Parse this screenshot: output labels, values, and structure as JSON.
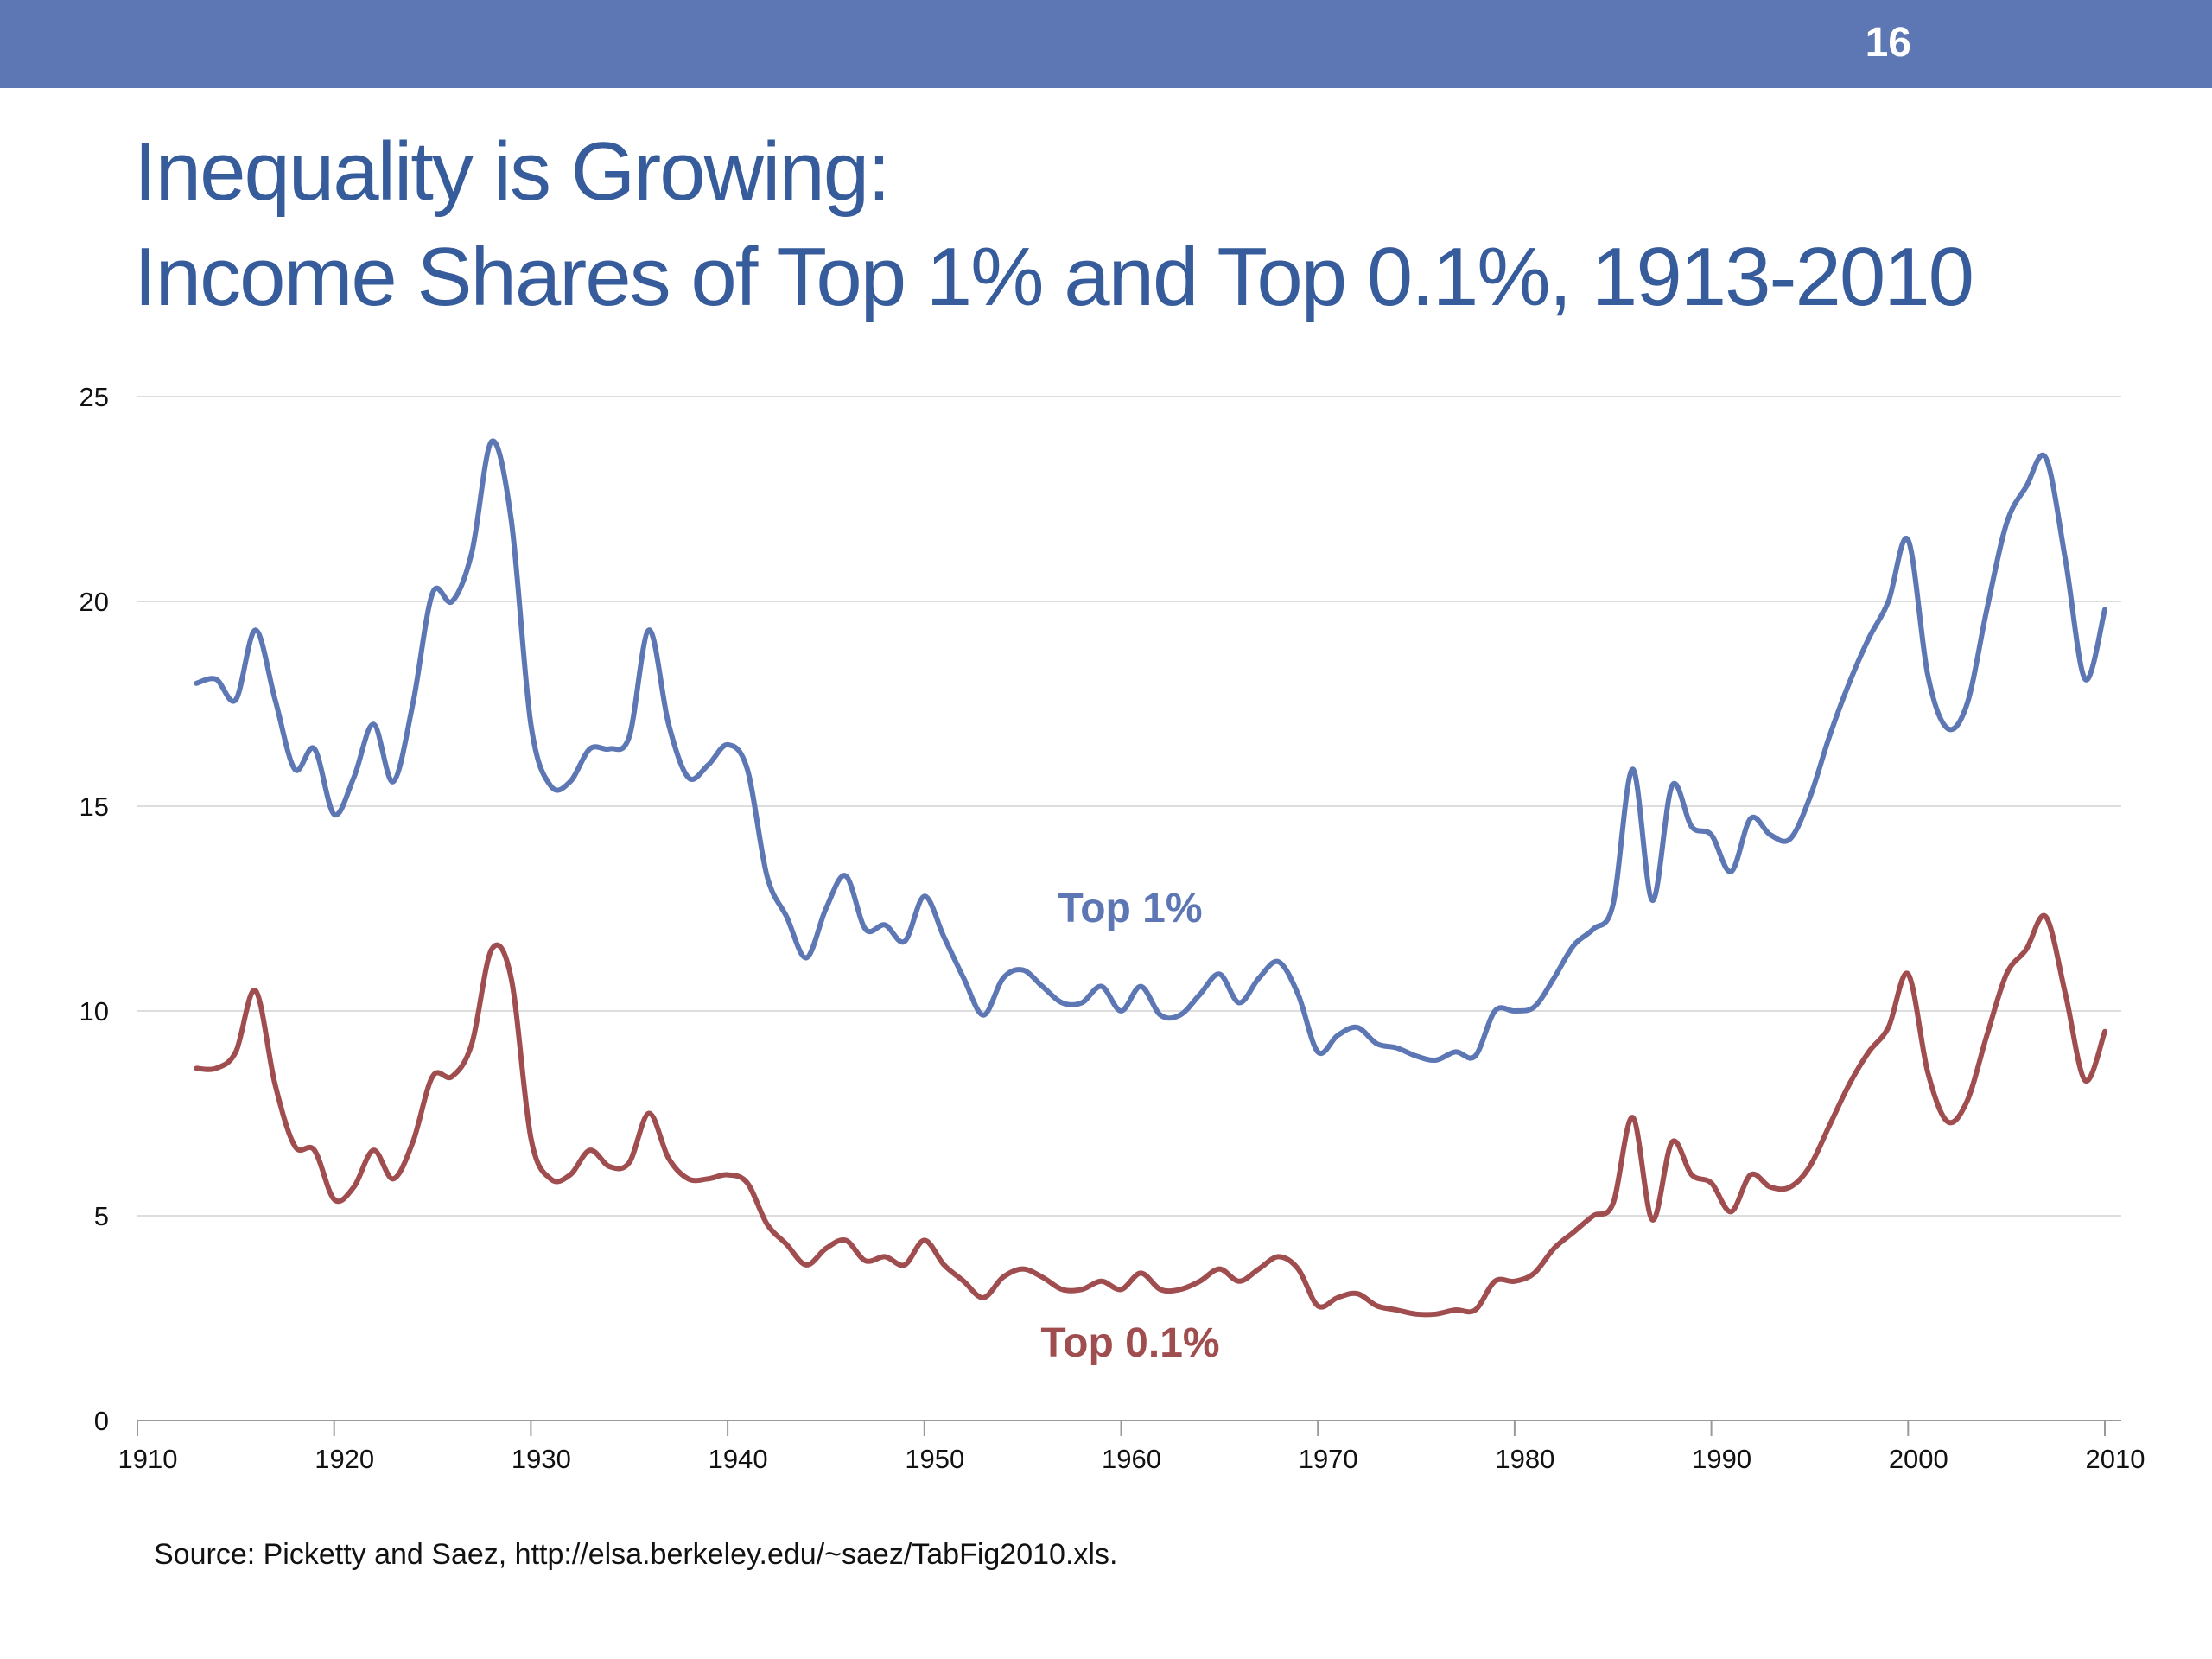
{
  "slide": {
    "number": "16",
    "title_line1": "Inequality is Growing:",
    "title_line2": "Income Shares of Top 1% and Top 0.1%, 1913-2010",
    "source": "Source: Picketty and Saez, http://elsa.berkeley.edu/~saez/TabFig2010.xls."
  },
  "colors": {
    "header_bar": "#5d77b5",
    "title": "#365c9b",
    "top1": "#5d77b5",
    "top01": "#a04d4f",
    "grid": "#dddddd",
    "axis": "#999999"
  },
  "chart_data": {
    "type": "line",
    "title": "",
    "xlabel": "",
    "ylabel": "",
    "xlim": [
      1910,
      2010
    ],
    "ylim": [
      0,
      25
    ],
    "grid": true,
    "x_ticks": [
      "1910",
      "1920",
      "1930",
      "1940",
      "1950",
      "1960",
      "1970",
      "1980",
      "1990",
      "2000",
      "2010"
    ],
    "y_ticks": [
      "0",
      "5",
      "10",
      "15",
      "20",
      "25"
    ],
    "x": [
      1913,
      1914,
      1915,
      1916,
      1917,
      1918,
      1919,
      1920,
      1921,
      1922,
      1923,
      1924,
      1925,
      1926,
      1927,
      1928,
      1929,
      1930,
      1931,
      1932,
      1933,
      1934,
      1935,
      1936,
      1937,
      1938,
      1939,
      1940,
      1941,
      1942,
      1943,
      1944,
      1945,
      1946,
      1947,
      1948,
      1949,
      1950,
      1951,
      1952,
      1953,
      1954,
      1955,
      1956,
      1957,
      1958,
      1959,
      1960,
      1961,
      1962,
      1963,
      1964,
      1965,
      1966,
      1967,
      1968,
      1969,
      1970,
      1971,
      1972,
      1973,
      1974,
      1975,
      1976,
      1977,
      1978,
      1979,
      1980,
      1981,
      1982,
      1983,
      1984,
      1985,
      1986,
      1987,
      1988,
      1989,
      1990,
      1991,
      1992,
      1993,
      1994,
      1995,
      1996,
      1997,
      1998,
      1999,
      2000,
      2001,
      2002,
      2003,
      2004,
      2005,
      2006,
      2007,
      2008,
      2009,
      2010
    ],
    "series": [
      {
        "name": "Top 1%",
        "values": [
          18.0,
          18.1,
          17.6,
          19.3,
          17.6,
          15.9,
          16.4,
          14.8,
          15.7,
          17.0,
          15.6,
          17.5,
          20.2,
          20.0,
          21.2,
          23.9,
          22.0,
          17.0,
          15.5,
          15.6,
          16.4,
          16.4,
          16.7,
          19.3,
          17.0,
          15.7,
          16.0,
          16.5,
          15.9,
          13.3,
          12.3,
          11.3,
          12.5,
          13.3,
          12.0,
          12.1,
          11.7,
          12.8,
          11.8,
          10.8,
          9.9,
          10.8,
          11.0,
          10.6,
          10.2,
          10.2,
          10.6,
          10.0,
          10.6,
          9.9,
          9.9,
          10.4,
          10.9,
          10.2,
          10.8,
          11.2,
          10.4,
          9.0,
          9.4,
          9.6,
          9.2,
          9.1,
          8.9,
          8.8,
          9.0,
          8.9,
          10.0,
          10.0,
          10.1,
          10.8,
          11.6,
          12.0,
          12.6,
          15.9,
          12.7,
          15.5,
          14.5,
          14.3,
          13.4,
          14.7,
          14.3,
          14.2,
          15.2,
          16.7,
          18.0,
          19.1,
          20.0,
          21.5,
          18.2,
          16.9,
          17.5,
          19.8,
          21.9,
          22.8,
          23.5,
          21.0,
          18.1,
          19.8
        ]
      },
      {
        "name": "Top 0.1%",
        "values": [
          8.6,
          8.6,
          9.0,
          10.5,
          8.2,
          6.7,
          6.6,
          5.4,
          5.7,
          6.6,
          5.9,
          6.8,
          8.4,
          8.4,
          9.2,
          11.5,
          10.8,
          6.9,
          5.9,
          6.0,
          6.6,
          6.2,
          6.3,
          7.5,
          6.4,
          5.9,
          5.9,
          6.0,
          5.8,
          4.8,
          4.3,
          3.8,
          4.2,
          4.4,
          3.9,
          4.0,
          3.8,
          4.4,
          3.8,
          3.4,
          3.0,
          3.5,
          3.7,
          3.5,
          3.2,
          3.2,
          3.4,
          3.2,
          3.6,
          3.2,
          3.2,
          3.4,
          3.7,
          3.4,
          3.7,
          4.0,
          3.7,
          2.8,
          3.0,
          3.1,
          2.8,
          2.7,
          2.6,
          2.6,
          2.7,
          2.7,
          3.4,
          3.4,
          3.6,
          4.2,
          4.6,
          5.0,
          5.3,
          7.4,
          4.9,
          6.8,
          6.0,
          5.8,
          5.1,
          6.0,
          5.7,
          5.7,
          6.2,
          7.2,
          8.2,
          9.0,
          9.6,
          10.9,
          8.5,
          7.3,
          7.8,
          9.4,
          10.9,
          11.5,
          12.3,
          10.4,
          8.3,
          9.5
        ]
      }
    ],
    "annotations": [
      "Top 1%",
      "Top 0.1%"
    ]
  }
}
